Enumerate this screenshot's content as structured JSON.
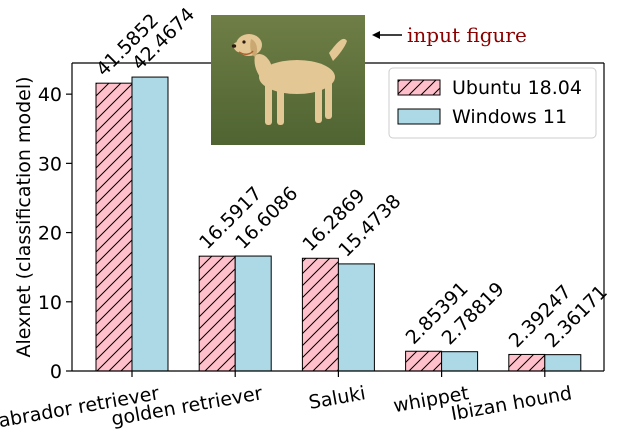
{
  "chart_data": {
    "type": "bar",
    "ylabel": "Alexnet (classification model)",
    "xlabel": "",
    "title": "",
    "ylim": [
      0,
      44.5
    ],
    "yticks": [
      0,
      10,
      20,
      30,
      40
    ],
    "categories": [
      "Labrador retriever",
      "golden retriever",
      "Saluki",
      "whippet",
      "Ibizan hound"
    ],
    "series": [
      {
        "name": "Ubuntu 18.04",
        "values": [
          41.5852,
          16.5917,
          16.2869,
          2.85391,
          2.39247
        ],
        "labels": [
          "41.5852",
          "16.5917",
          "16.2869",
          "2.85391",
          "2.39247"
        ],
        "color": "#ffc0cb",
        "hatch": "diagonal"
      },
      {
        "name": "Windows 11",
        "values": [
          42.4674,
          16.6086,
          15.4738,
          2.78819,
          2.36171
        ],
        "labels": [
          "42.4674",
          "16.6086",
          "15.4738",
          "2.78819",
          "2.36171"
        ],
        "color": "#add8e6",
        "hatch": "none"
      }
    ],
    "legend_position": "top-right",
    "grid": false
  },
  "annotation": {
    "text": "input figure",
    "color": "#8b0000",
    "image_icon": "labrador-dog-photo"
  }
}
